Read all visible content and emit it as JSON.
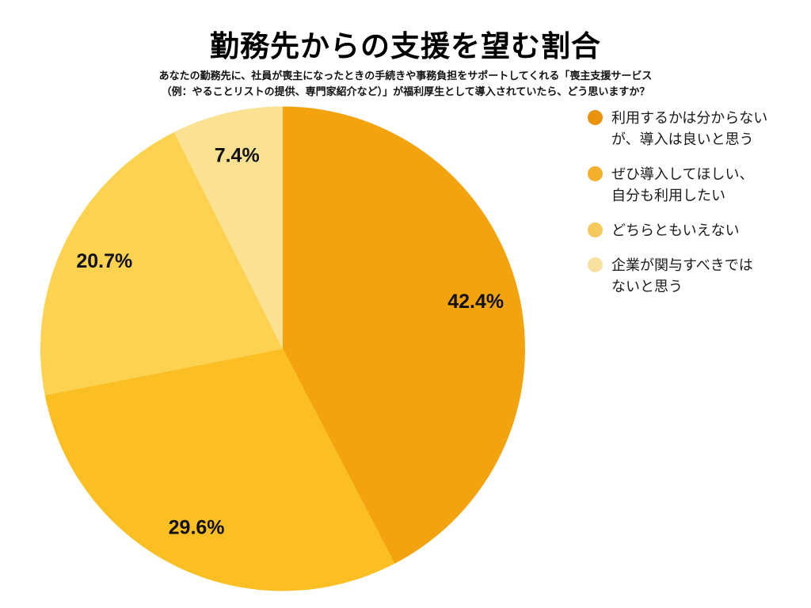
{
  "page": {
    "background_color": "#FFFFFF"
  },
  "header": {
    "title": "勤務先からの支援を望む割合",
    "subtitle_line1": "あなたの勤務先に、社員が喪主になったときの手続きや事務負担をサポートしてくれる「喪主支援サービス",
    "subtitle_line2": "（例：やることリストの提供、専門家紹介など）」が福利厚生として導入されていたら、どう思いますか？"
  },
  "chart_data": {
    "type": "pie",
    "title": "勤務先からの支援を望む割合",
    "categories": [
      "利用するかは分からないが、導入は良いと思う",
      "ぜひ導入してほしい、自分も利用したい",
      "どちらともいえない",
      "企業が関与すべきではないと思う"
    ],
    "values": [
      42.4,
      29.6,
      20.7,
      7.4
    ],
    "labels": [
      "42.4%",
      "29.6%",
      "20.7%",
      "7.4%"
    ],
    "unit": "%",
    "colors": [
      "#F2A30D",
      "#FBBF24",
      "#FCD250",
      "#FAE292"
    ],
    "start": "top",
    "direction": "clockwise",
    "label_radius_factor": 0.82,
    "legend_position": "right"
  },
  "legend": {
    "items": [
      {
        "label": "利用するかは分からないが、導入は良いと思う",
        "lines": [
          "利用するかは分からない",
          "が、導入は良いと思う"
        ],
        "color": "#E8920E"
      },
      {
        "label": "ぜひ導入してほしい、自分も利用したい",
        "lines": [
          "ぜひ導入してほしい、",
          "自分も利用したい"
        ],
        "color": "#F4B02B"
      },
      {
        "label": "どちらともいえない",
        "lines": [
          "どちらともいえない"
        ],
        "color": "#F5C95E"
      },
      {
        "label": "企業が関与すべきではないと思う",
        "lines": [
          "企業が関与すべきでは",
          "ないと思う"
        ],
        "color": "#F8E1A0"
      }
    ]
  }
}
